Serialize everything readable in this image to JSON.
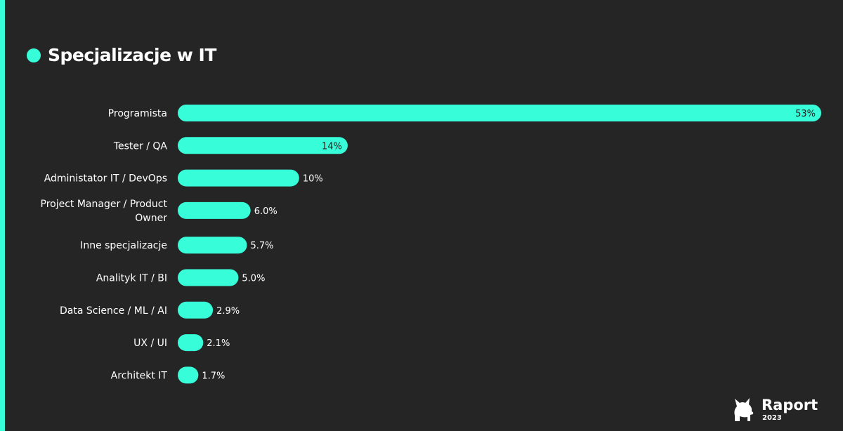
{
  "colors": {
    "accent": "#37FDD8",
    "background": "#252525",
    "text": "#FFFFFF",
    "inside_label": "#1E1E1E"
  },
  "chart_data": {
    "type": "bar",
    "orientation": "horizontal",
    "title": "Specjalizacje w IT",
    "categories": [
      [
        "Programista"
      ],
      [
        "Tester / QA"
      ],
      [
        "Administator IT / DevOps"
      ],
      [
        "Project Manager / Product",
        "Owner"
      ],
      [
        "Inne specjalizacje"
      ],
      [
        "Analityk IT / BI"
      ],
      [
        "Data Science / ML / AI"
      ],
      [
        "UX / UI"
      ],
      [
        "Architekt IT"
      ]
    ],
    "values": [
      53,
      14,
      10,
      6.0,
      5.7,
      5.0,
      2.9,
      2.1,
      1.7
    ],
    "value_labels": [
      "53%",
      "14%",
      "10%",
      "6.0%",
      "5.7%",
      "5.0%",
      "2.9%",
      "2.1%",
      "1.7%"
    ],
    "xlim": [
      0,
      53
    ],
    "grid": false,
    "legend": "none"
  },
  "logo": {
    "text": "Raport",
    "year": "2023",
    "icon": "french-bulldog-icon"
  }
}
